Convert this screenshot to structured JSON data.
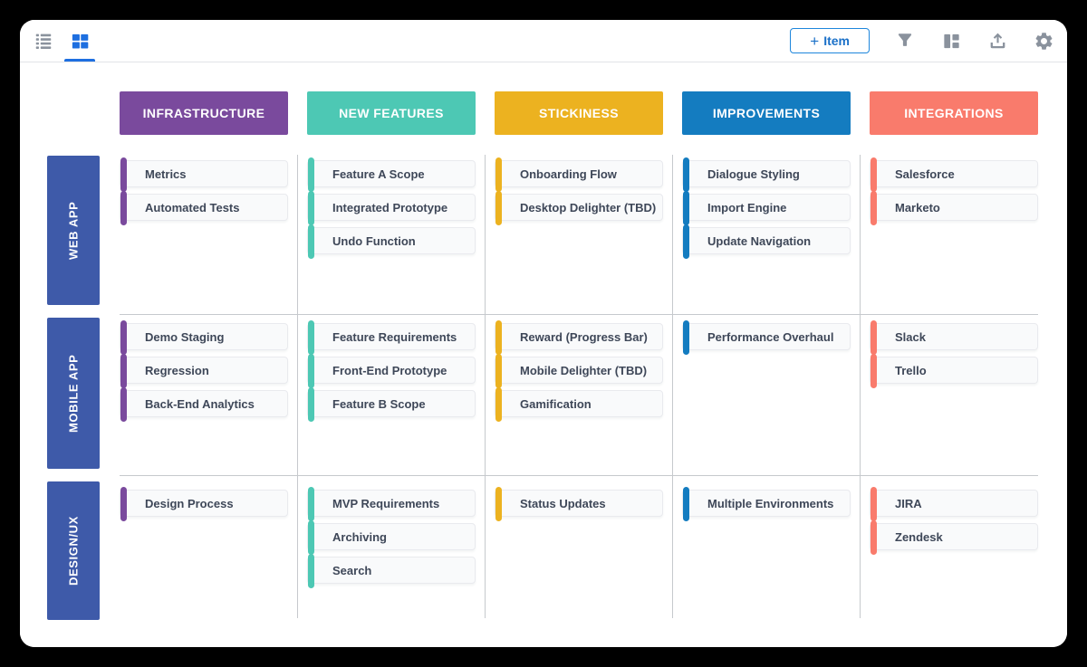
{
  "toolbar": {
    "add_item_plus": "+",
    "add_item_label": "Item",
    "icons": {
      "left": [
        "list-view",
        "grid-view"
      ],
      "right": [
        "filter",
        "layout",
        "export",
        "settings"
      ]
    },
    "active_view": "grid-view",
    "active_color": "#1e6fe0",
    "icon_color": "#8a929d"
  },
  "board": {
    "row_label_color": "#3e5aa9",
    "columns": [
      {
        "label": "INFRASTRUCTURE",
        "color": "#7a4a9d"
      },
      {
        "label": "NEW FEATURES",
        "color": "#4dc8b4"
      },
      {
        "label": "STICKINESS",
        "color": "#ecb220"
      },
      {
        "label": "IMPROVEMENTS",
        "color": "#147cc0"
      },
      {
        "label": "INTEGRATIONS",
        "color": "#f97b6c"
      }
    ],
    "rows": [
      {
        "label": "WEB APP",
        "cells": [
          [
            "Metrics",
            "Automated Tests"
          ],
          [
            "Feature A Scope",
            "Integrated Prototype",
            "Undo Function"
          ],
          [
            "Onboarding Flow",
            "Desktop Delighter (TBD)"
          ],
          [
            "Dialogue Styling",
            "Import Engine",
            "Update Navigation"
          ],
          [
            "Salesforce",
            "Marketo"
          ]
        ]
      },
      {
        "label": "MOBILE APP",
        "cells": [
          [
            "Demo Staging",
            "Regression",
            "Back-End Analytics"
          ],
          [
            "Feature Requirements",
            "Front-End Prototype",
            "Feature B Scope"
          ],
          [
            "Reward (Progress Bar)",
            "Mobile Delighter (TBD)",
            "Gamification"
          ],
          [
            "Performance Overhaul"
          ],
          [
            "Slack",
            "Trello"
          ]
        ]
      },
      {
        "label": "DESIGN/UX",
        "cells": [
          [
            "Design Process"
          ],
          [
            "MVP Requirements",
            "Archiving",
            "Search"
          ],
          [
            "Status Updates"
          ],
          [
            "Multiple Environments"
          ],
          [
            "JIRA",
            "Zendesk"
          ]
        ]
      }
    ]
  }
}
